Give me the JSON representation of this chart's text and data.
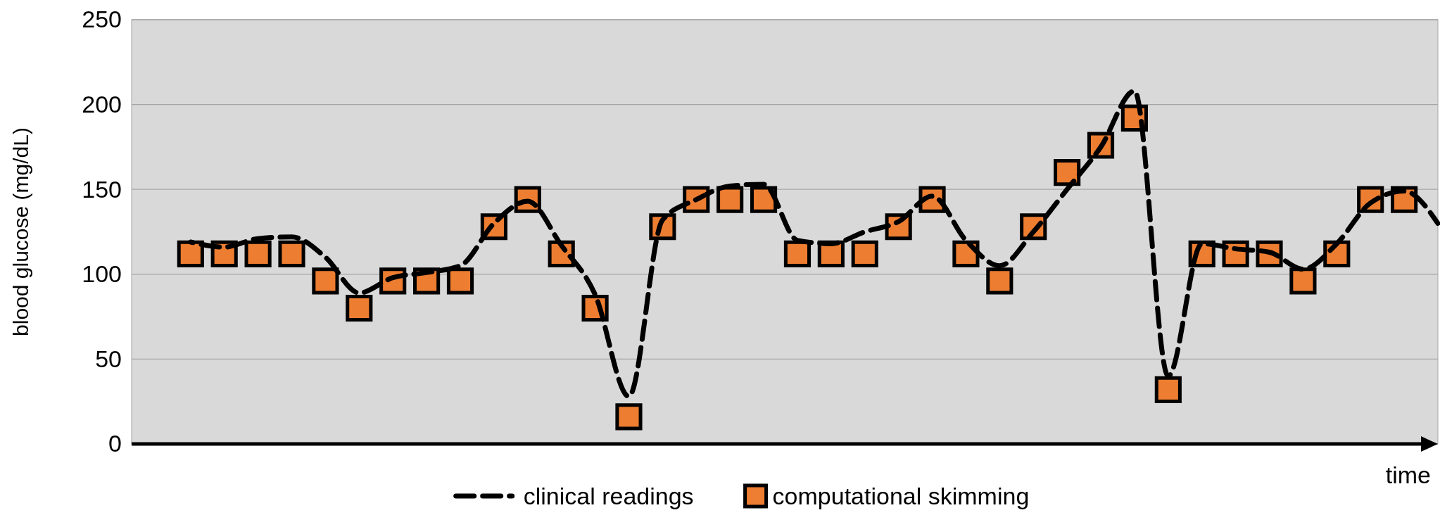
{
  "chart_data": {
    "type": "line",
    "xlabel": "time",
    "ylabel": "blood glucose (mg/dL)",
    "categories": [
      null,
      null,
      null,
      null,
      null,
      null,
      null,
      null,
      null,
      null,
      null,
      null,
      null,
      null,
      null,
      null,
      null,
      null,
      null,
      null,
      null,
      null,
      null,
      null,
      null,
      null,
      null,
      null,
      null,
      null,
      null,
      null,
      null,
      null,
      null,
      null,
      null,
      null
    ],
    "series": [
      {
        "name": "clinical readings",
        "color": "#000000",
        "line_style": "dashed",
        "marker": "none",
        "values": [
          119,
          116,
          121,
          122,
          110,
          89,
          98,
          101,
          105,
          130,
          143,
          117,
          88,
          28,
          132,
          144,
          152,
          153,
          120,
          118,
          125,
          131,
          146,
          120,
          105,
          125,
          150,
          175,
          208,
          40,
          118,
          115,
          113,
          103,
          118,
          142,
          149,
          130
        ]
      },
      {
        "name": "computational skimming",
        "type": "scatter",
        "color": "#ed7d31",
        "marker": "square",
        "values": [
          112,
          112,
          112,
          112,
          96,
          80,
          96,
          96,
          96,
          128,
          144,
          112,
          80,
          16,
          128,
          144,
          144,
          144,
          112,
          112,
          112,
          128,
          144,
          112,
          96,
          128,
          160,
          176,
          192,
          32,
          112,
          112,
          112,
          96,
          112,
          144,
          144,
          null
        ]
      }
    ],
    "ylim": [
      0,
      250
    ],
    "yticks": [
      0,
      50,
      100,
      150,
      200,
      250
    ],
    "grid": "y",
    "legend": "bottom",
    "tick_labels": "y"
  }
}
